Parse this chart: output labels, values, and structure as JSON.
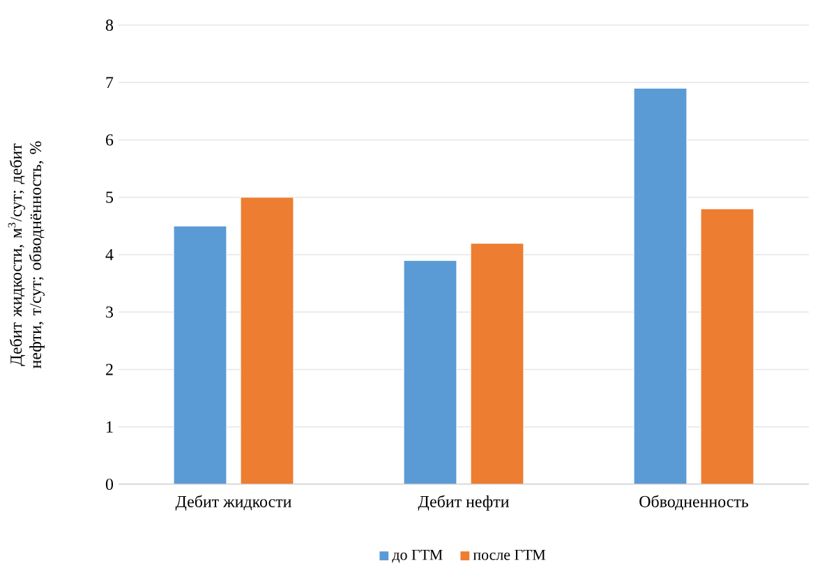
{
  "chart_data": {
    "type": "bar",
    "ylabel": "Дебит жидкости, м$^{3}$/сут; дебит нефти, т/сут; обводнённость, %",
    "categories": [
      "Дебит жидкости",
      "Дебит нефти",
      "Обводненность"
    ],
    "series": [
      {
        "name": "до ГТМ",
        "color": "#5b9bd5",
        "values": [
          4.5,
          3.9,
          6.9
        ]
      },
      {
        "name": "после ГТМ",
        "color": "#ed7d31",
        "values": [
          5.0,
          4.2,
          4.8
        ]
      }
    ],
    "ylim": [
      0,
      8
    ],
    "yticks": [
      0,
      1,
      2,
      3,
      4,
      5,
      6,
      7,
      8
    ],
    "grid": "y",
    "legend": "bottom"
  }
}
